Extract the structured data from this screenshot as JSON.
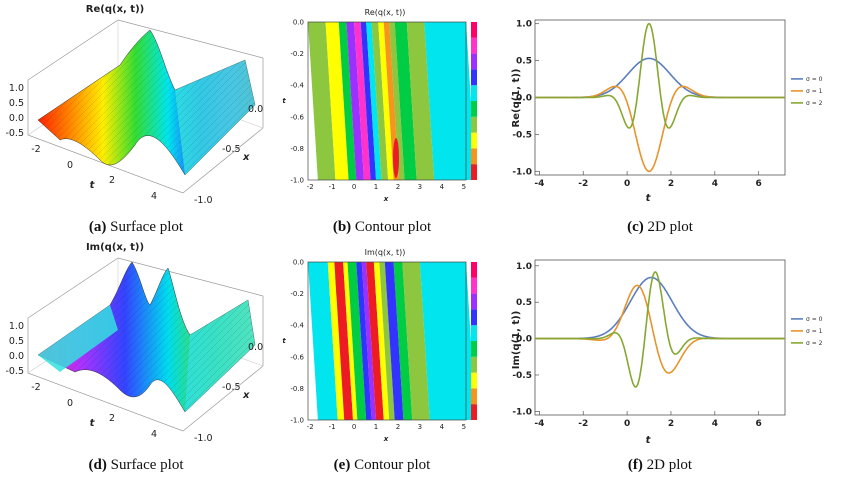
{
  "panels": {
    "a": {
      "tag": "(a)",
      "caption": "Surface plot",
      "title": "Re(q(x, t))",
      "xlabel": "x",
      "ylabel": "t",
      "z_ticks": [
        "1.0",
        "0.5",
        "0.0",
        "-0.5"
      ],
      "t_ticks": [
        "-2",
        "0",
        "2",
        "4"
      ],
      "x_ticks": [
        "0.0",
        "-0.5",
        "-1.0"
      ]
    },
    "b": {
      "tag": "(b)",
      "caption": "Contour plot",
      "title": "Re(q(x, t))",
      "xlabel": "x",
      "ylabel": "t",
      "x_ticks": [
        "-2",
        "-1",
        "0",
        "1",
        "2",
        "3",
        "4",
        "5"
      ],
      "y_ticks": [
        "0.0",
        "-0.2",
        "-0.4",
        "-0.6",
        "-0.8",
        "-1.0"
      ]
    },
    "c": {
      "tag": "(c)",
      "caption": "2D plot",
      "xlabel": "t",
      "ylabel": "Re(q(1, t))"
    },
    "d": {
      "tag": "(d)",
      "caption": "Surface plot",
      "title": "Im(q(x, t))",
      "xlabel": "x",
      "ylabel": "t",
      "z_ticks": [
        "1.0",
        "0.5",
        "0.0",
        "-0.5"
      ],
      "t_ticks": [
        "-2",
        "0",
        "2",
        "4"
      ],
      "x_ticks": [
        "0.0",
        "-0.5",
        "-1.0"
      ]
    },
    "e": {
      "tag": "(e)",
      "caption": "Contour plot",
      "title": "Im(q(x, t))",
      "xlabel": "x",
      "ylabel": "t",
      "x_ticks": [
        "-2",
        "-1",
        "0",
        "1",
        "2",
        "3",
        "4",
        "5"
      ],
      "y_ticks": [
        "0.0",
        "-0.2",
        "-0.4",
        "-0.6",
        "-0.8",
        "-1.0"
      ]
    },
    "f": {
      "tag": "(f)",
      "caption": "2D plot",
      "xlabel": "t",
      "ylabel": "Im(q(1, t))"
    }
  },
  "colors": {
    "sigma0": "#5b7fbd",
    "sigma1": "#e8942c",
    "sigma2": "#86a832",
    "contour_bands": [
      "#ed1c24",
      "#f7941d",
      "#ffff00",
      "#8dc63f",
      "#00cc44",
      "#00e5ee",
      "#3333ff",
      "#9b30ff",
      "#ff33cc",
      "#ff0066"
    ]
  },
  "chart_data": [
    {
      "id": "c",
      "type": "line",
      "xlabel": "t",
      "ylabel": "Re(q(1, t))",
      "xlim": [
        -4.2,
        7.2
      ],
      "ylim": [
        -1.05,
        1.05
      ],
      "x_ticks": [
        -4,
        -2,
        0,
        2,
        4,
        6
      ],
      "y_ticks": [
        -1.0,
        -0.5,
        0.0,
        0.5,
        1.0
      ],
      "x_tick_labels": [
        "-4",
        "-2",
        "0",
        "2",
        "4",
        "6"
      ],
      "y_tick_labels": [
        "-1.0",
        "-0.5",
        "0.0",
        "0.5",
        "1.0"
      ],
      "series": [
        {
          "name": "σ = 0",
          "kind": "gauss",
          "amp": 0.53,
          "center": 1.0,
          "width": 1.35,
          "freq": 0,
          "phase": 0
        },
        {
          "name": "σ = 1",
          "kind": "wave",
          "amp": 1.0,
          "center": 1.0,
          "width": 1.3,
          "freq": 1.45,
          "phase": 3.14159
        },
        {
          "name": "σ = 2",
          "kind": "wave",
          "amp": 1.0,
          "center": 1.0,
          "width": 1.05,
          "freq": 2.9,
          "phase": 0
        }
      ]
    },
    {
      "id": "f",
      "type": "line",
      "xlabel": "t",
      "ylabel": "Im(q(1, t))",
      "xlim": [
        -4.2,
        7.2
      ],
      "ylim": [
        -1.05,
        1.08
      ],
      "x_ticks": [
        -4,
        -2,
        0,
        2,
        4,
        6
      ],
      "y_ticks": [
        -1.0,
        -0.5,
        0.0,
        0.5,
        1.0
      ],
      "x_tick_labels": [
        "-4",
        "-2",
        "0",
        "2",
        "4",
        "6"
      ],
      "y_tick_labels": [
        "-1.0",
        "-0.5",
        "0.0",
        "0.5",
        "1.0"
      ],
      "series": [
        {
          "name": "σ = 0",
          "kind": "gauss",
          "amp": 0.84,
          "center": 1.1,
          "width": 1.35,
          "freq": 0,
          "phase": 0
        },
        {
          "name": "σ = 1",
          "kind": "wave",
          "amp": 0.95,
          "center": 1.0,
          "width": 1.3,
          "freq": 1.45,
          "phase": 1.2
        },
        {
          "name": "σ = 2",
          "kind": "wave",
          "amp": 1.0,
          "center": 1.0,
          "width": 1.05,
          "freq": 2.9,
          "phase": -1.0
        }
      ]
    }
  ]
}
